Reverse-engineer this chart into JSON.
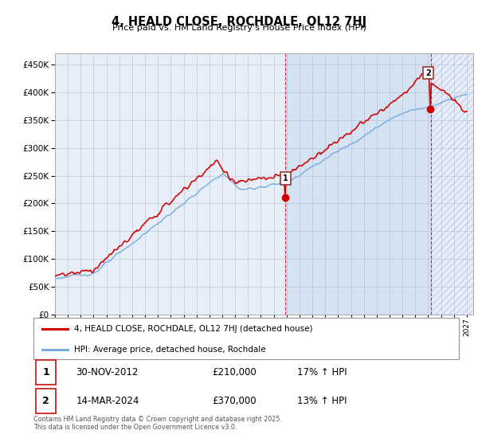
{
  "title": "4, HEALD CLOSE, ROCHDALE, OL12 7HJ",
  "subtitle": "Price paid vs. HM Land Registry's House Price Index (HPI)",
  "hpi_color": "#7aaddd",
  "price_color": "#cc0000",
  "background_color": "#e8eef8",
  "shade_color": "#ccddf0",
  "grid_color": "#aabbcc",
  "ylim": [
    0,
    470000
  ],
  "yticks": [
    0,
    50000,
    100000,
    150000,
    200000,
    250000,
    300000,
    350000,
    400000,
    450000
  ],
  "legend_label_price": "4, HEALD CLOSE, ROCHDALE, OL12 7HJ (detached house)",
  "legend_label_hpi": "HPI: Average price, detached house, Rochdale",
  "annotation1_date": "30-NOV-2012",
  "annotation1_price": "£210,000",
  "annotation1_hpi": "17% ↑ HPI",
  "annotation2_date": "14-MAR-2024",
  "annotation2_price": "£370,000",
  "annotation2_hpi": "13% ↑ HPI",
  "footnote": "Contains HM Land Registry data © Crown copyright and database right 2025.\nThis data is licensed under the Open Government Licence v3.0.",
  "ann1_year": 2012.917,
  "ann2_year": 2024.2
}
